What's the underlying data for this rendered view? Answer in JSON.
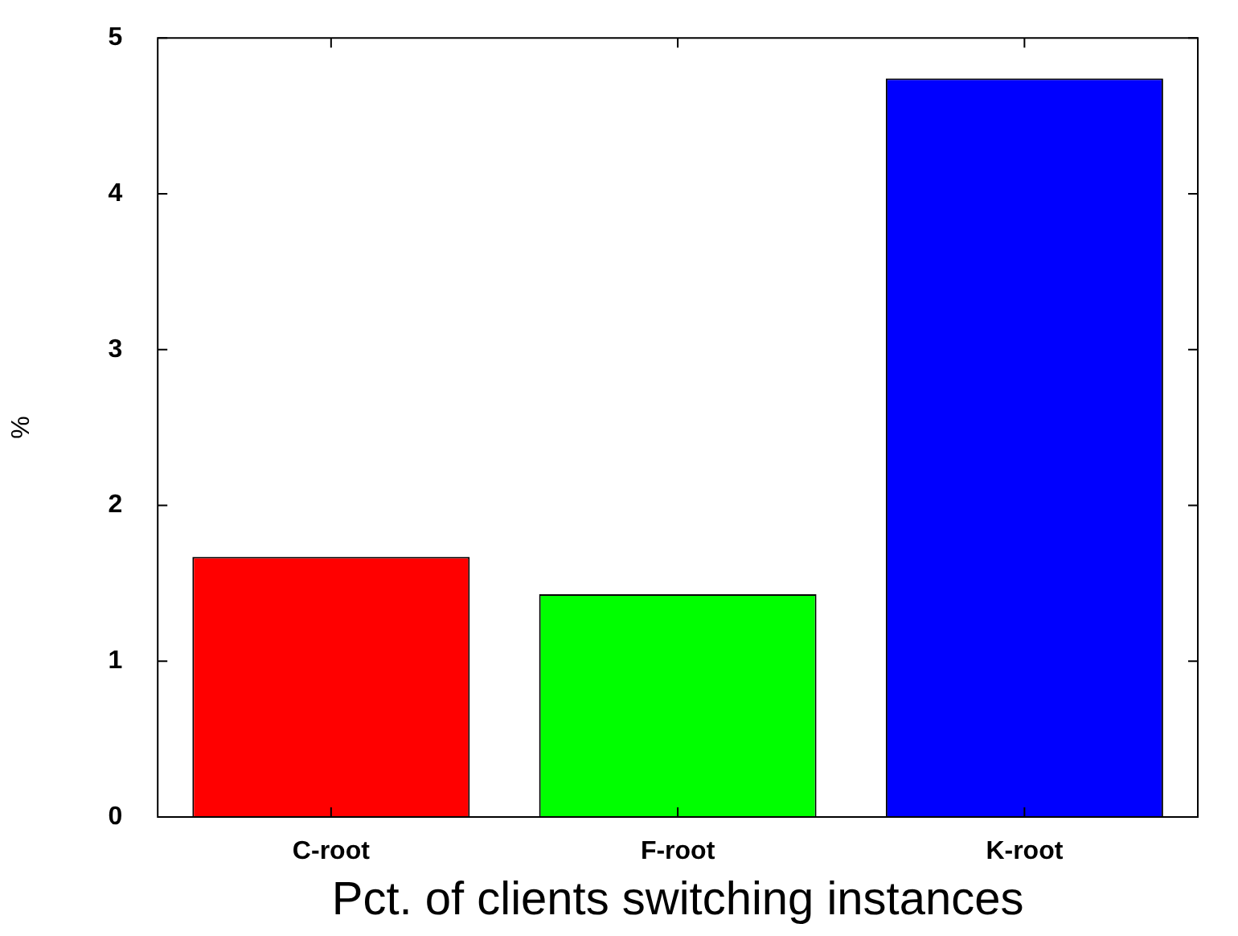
{
  "chart_data": {
    "type": "bar",
    "xlabel": "Pct. of clients switching instances",
    "ylabel": "%",
    "categories": [
      "C-root",
      "F-root",
      "K-root"
    ],
    "values": [
      1.67,
      1.43,
      4.74
    ],
    "colors": [
      "#ff0000",
      "#00ff00",
      "#0000ff"
    ],
    "ylim": [
      0,
      5
    ],
    "yticks": [
      0,
      1,
      2,
      3,
      4,
      5
    ],
    "grid": false,
    "legend": false
  }
}
